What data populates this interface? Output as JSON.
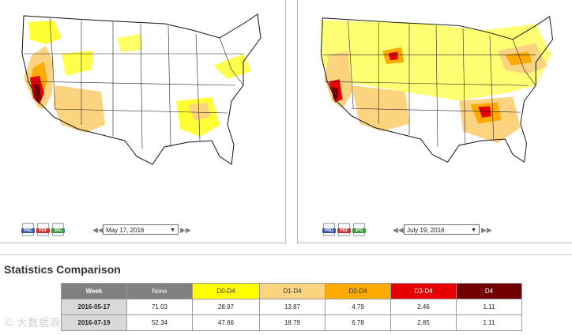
{
  "left_panel": {
    "date_value": "May 17, 2016",
    "downloads": [
      {
        "label": "PNG",
        "color": "#3a55a8"
      },
      {
        "label": "PDF",
        "color": "#d0312d"
      },
      {
        "label": "JPG",
        "color": "#3a9a3a"
      }
    ],
    "prev_glyph": "◀◀",
    "next_glyph": "▶▶",
    "dropdown_glyph": "▼"
  },
  "right_panel": {
    "date_value": "July 19, 2016",
    "downloads": [
      {
        "label": "PNG",
        "color": "#3a55a8"
      },
      {
        "label": "PDF",
        "color": "#d0312d"
      },
      {
        "label": "JPG",
        "color": "#3a9a3a"
      }
    ],
    "prev_glyph": "◀◀",
    "next_glyph": "▶▶",
    "dropdown_glyph": "▼"
  },
  "stats": {
    "title": "Statistics Comparison",
    "headers": [
      "Week",
      "None",
      "D0-D4",
      "D1-D4",
      "D2-D4",
      "D3-D4",
      "D4"
    ],
    "rows": [
      [
        "2016-05-17",
        "71.03",
        "28.97",
        "13.87",
        "4.79",
        "2.46",
        "1.11"
      ],
      [
        "2016-07-19",
        "52.34",
        "47.66",
        "18.79",
        "6.78",
        "2.85",
        "1.11"
      ]
    ]
  },
  "colors": {
    "d0": "#ffff00",
    "d1": "#fcd37f",
    "d2": "#ffaa00",
    "d3": "#e60000",
    "d4": "#730000"
  },
  "watermark": "© 大数据观"
}
